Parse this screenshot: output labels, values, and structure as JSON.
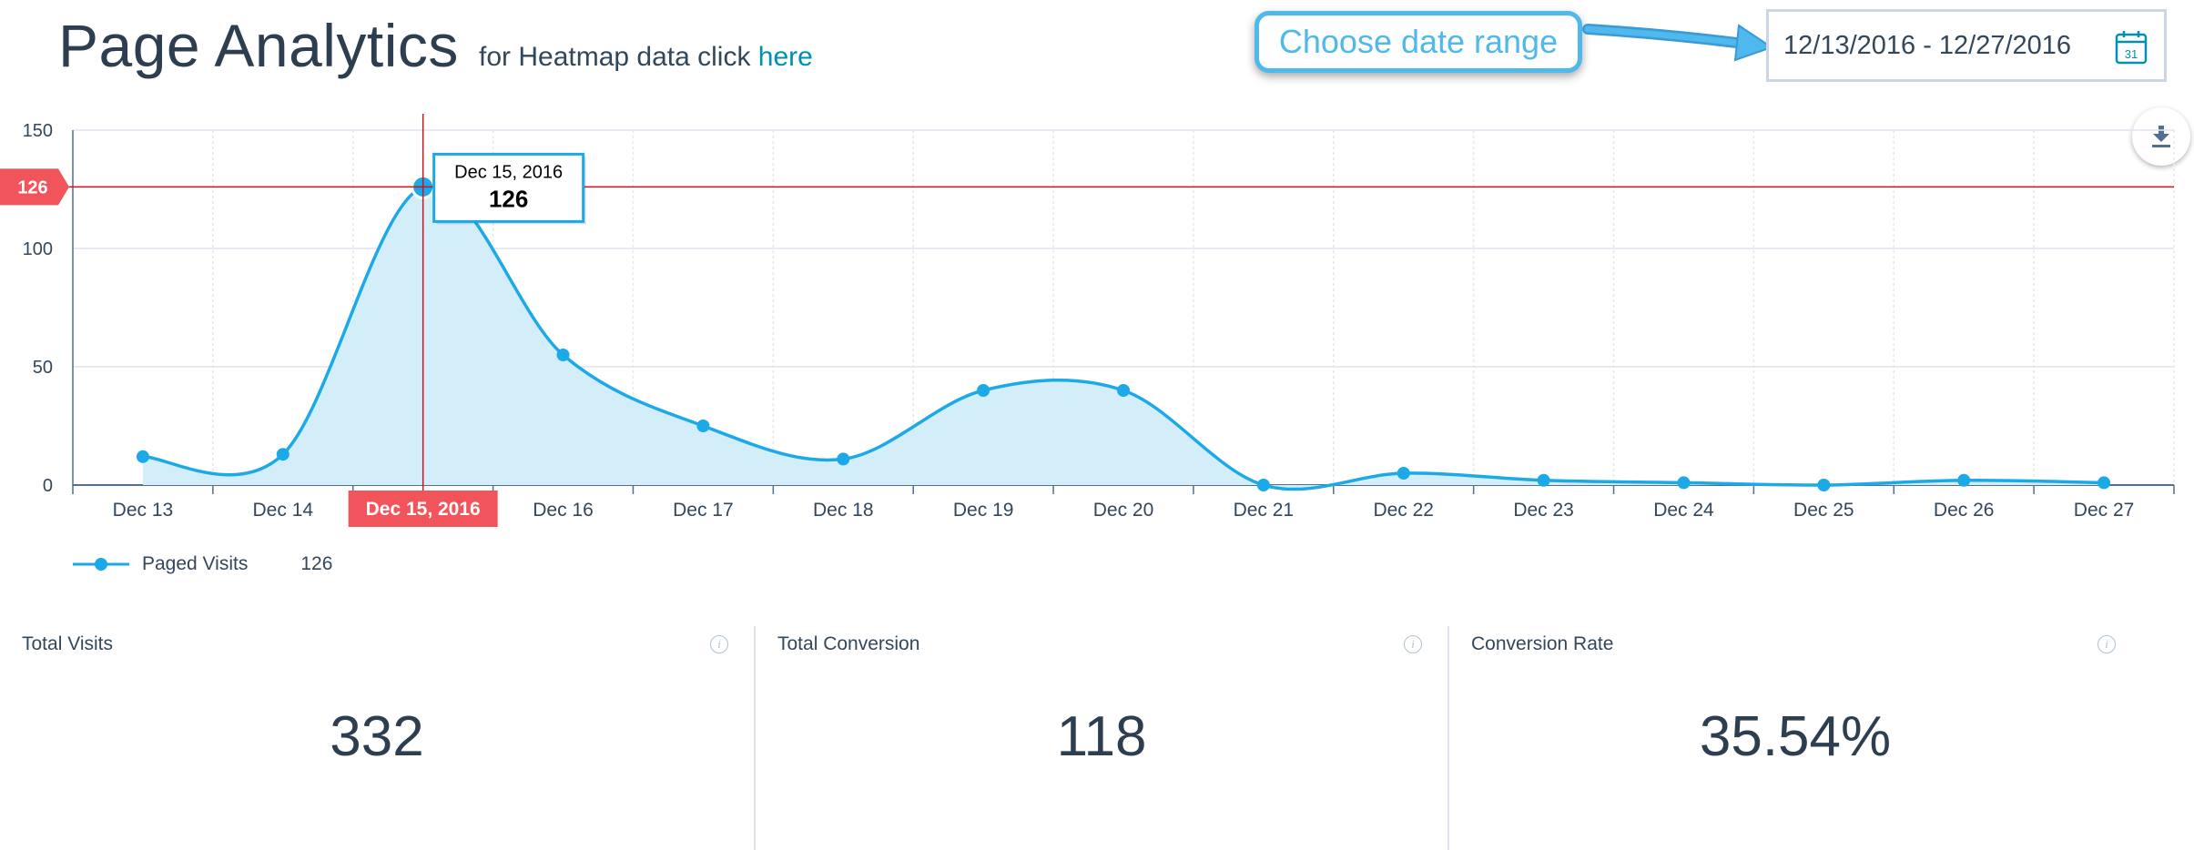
{
  "header": {
    "title": "Page Analytics",
    "heatmap_prefix": "for Heatmap data click ",
    "heatmap_link": "here",
    "callout": "Choose date range",
    "date_range": "12/13/2016 - 12/27/2016",
    "calendar_day": "31"
  },
  "chart_data": {
    "type": "area",
    "x": [
      "Dec 13",
      "Dec 14",
      "Dec 15, 2016",
      "Dec 16",
      "Dec 17",
      "Dec 18",
      "Dec 19",
      "Dec 20",
      "Dec 21",
      "Dec 22",
      "Dec 23",
      "Dec 24",
      "Dec 25",
      "Dec 26",
      "Dec 27"
    ],
    "series": [
      {
        "name": "Paged Visits",
        "values": [
          12,
          13,
          126,
          55,
          25,
          11,
          40,
          40,
          0,
          5,
          2,
          1,
          0,
          2,
          1
        ]
      }
    ],
    "ylim": [
      0,
      150
    ],
    "yticks": [
      0,
      50,
      100,
      150
    ],
    "grid": true,
    "highlight": {
      "index": 2,
      "value": 126,
      "value_label": "126",
      "date": "Dec 15, 2016"
    },
    "colors": {
      "line": "#1ba9e8",
      "fill": "#d3edf9",
      "crosshair": "#c9141e",
      "highlight": "#f2545b"
    }
  },
  "legend": {
    "label": "Paged Visits",
    "value": "126"
  },
  "stats": [
    {
      "label": "Total Visits",
      "value": "332",
      "info": "i"
    },
    {
      "label": "Total Conversion",
      "value": "118",
      "info": "i"
    },
    {
      "label": "Conversion Rate",
      "value": "35.54%",
      "info": "i"
    }
  ]
}
